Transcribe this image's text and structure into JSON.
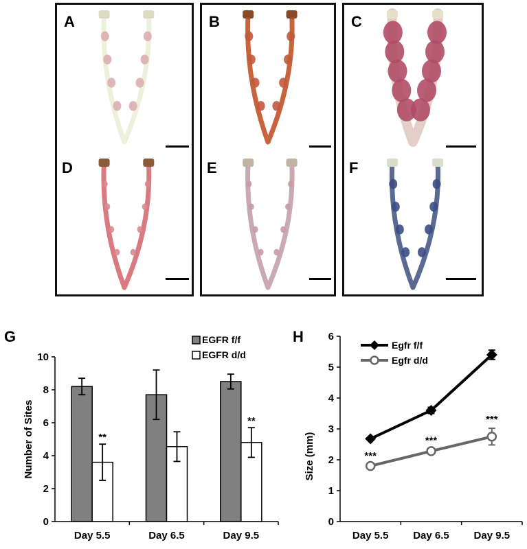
{
  "photo_panels": [
    {
      "label": "A",
      "tissue": "#eef0dc",
      "site": "#d9aeb0",
      "tip": "#dcdcc4"
    },
    {
      "label": "B",
      "tissue": "#c8643c",
      "site": "#c15a3c",
      "tip": "#8a4a2a"
    },
    {
      "label": "C",
      "tissue": "#e4cfc8",
      "site": "#b04d66",
      "tip": "#e6e0c8"
    },
    {
      "label": "D",
      "tissue": "#d97a80",
      "site": "#d98890",
      "tip": "#8a5a3a"
    },
    {
      "label": "E",
      "tissue": "#c9aab2",
      "site": "#c89aa4",
      "tip": "#bfb4a0"
    },
    {
      "label": "F",
      "tissue": "#5a6a90",
      "site": "#3d4e86",
      "tip": "#d8dcc8"
    }
  ],
  "figure_labels": {
    "g": "G",
    "h": "H"
  },
  "chart_data": [
    {
      "type": "bar",
      "panel": "G",
      "categories": [
        "Day 5.5",
        "Day 6.5",
        "Day 9.5"
      ],
      "series": [
        {
          "name": "EGFR f/f",
          "color": "#808080",
          "values": [
            8.2,
            7.7,
            8.5
          ],
          "errors": [
            0.5,
            1.5,
            0.45
          ]
        },
        {
          "name": "EGFR d/d",
          "color": "#ffffff",
          "values": [
            3.6,
            4.55,
            4.8
          ],
          "errors": [
            1.1,
            0.9,
            0.9
          ]
        }
      ],
      "annotations": [
        "**",
        "",
        "**"
      ],
      "ylabel": "Number of Sites",
      "ylim": [
        0,
        10
      ],
      "yticks": [
        0,
        2,
        4,
        6,
        8,
        10
      ],
      "legend": "top-right",
      "grid": false
    },
    {
      "type": "line",
      "panel": "H",
      "categories": [
        "Day 5.5",
        "Day 6.5",
        "Day 9.5"
      ],
      "series": [
        {
          "name": "Egfr f/f",
          "color": "#000000",
          "marker": "diamond",
          "values": [
            2.68,
            3.6,
            5.4
          ],
          "errors": [
            0.05,
            0.1,
            0.15
          ]
        },
        {
          "name": "Egfr d/d",
          "color": "#666666",
          "marker": "open-circle",
          "values": [
            1.8,
            2.28,
            2.75
          ],
          "errors": [
            0.05,
            0.06,
            0.27
          ]
        }
      ],
      "annotations": [
        "***",
        "***",
        "***"
      ],
      "ylabel": "Size (mm)",
      "ylim": [
        0,
        6
      ],
      "yticks": [
        0,
        1,
        2,
        3,
        4,
        5,
        6
      ],
      "legend": "top-left",
      "grid": false
    }
  ]
}
